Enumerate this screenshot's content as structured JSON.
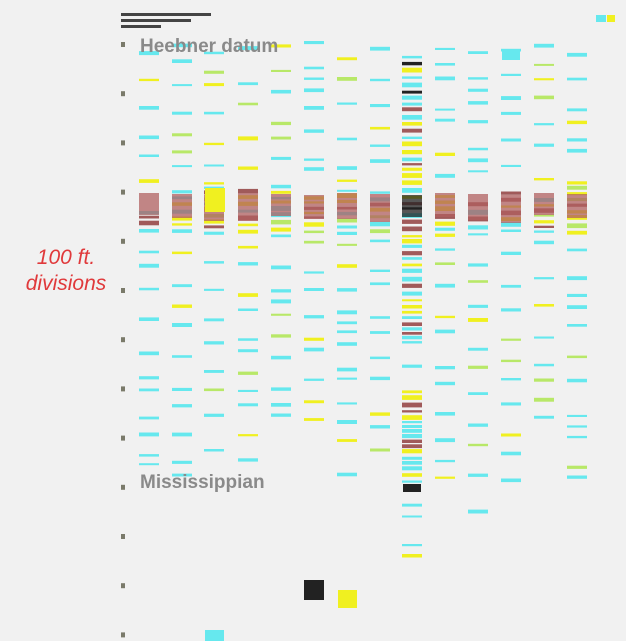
{
  "annotations": {
    "datum": "Heebner datum",
    "base": "Mississippian",
    "scale_line1": "100 ft.",
    "scale_line2": "divisions"
  }
}
